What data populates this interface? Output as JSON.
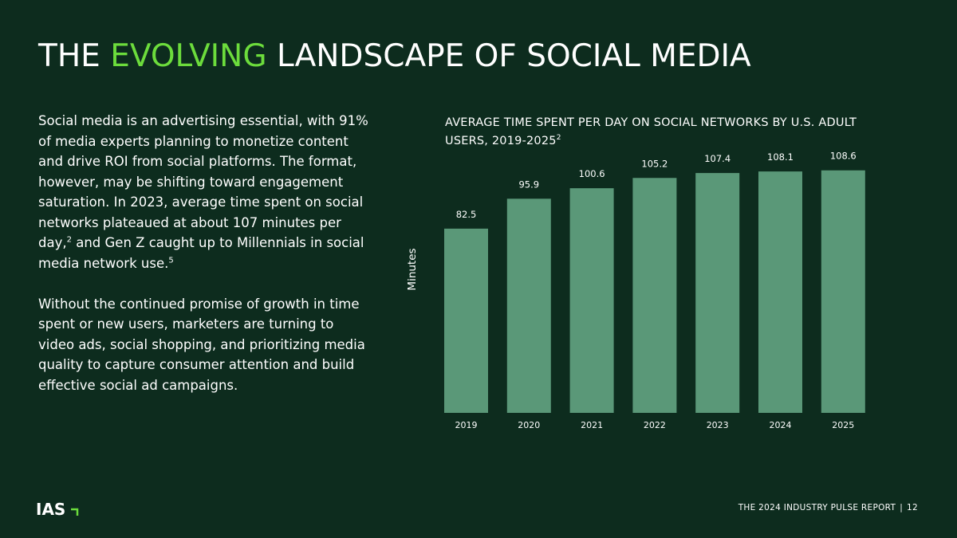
{
  "header": {
    "title_part1": "THE ",
    "title_accent": "EVOLVING",
    "title_part2": " LANDSCAPE OF SOCIAL MEDIA"
  },
  "body": {
    "p1_text": "Social media is an advertising essential, with 91% of media experts planning to monetize content and drive ROI from social platforms. The format, however, may be shifting toward engagement saturation. In 2023, average time spent on social networks plateaued at about 107 minutes per day,",
    "p1_sup1": "2",
    "p1_text2": " and Gen Z caught up to Millennials in social media network use.",
    "p1_sup2": "5",
    "p2_text": "Without the continued promise of growth in time spent or new users, marketers are turning to video ads, social shopping, and prioritizing media quality to capture consumer attention and build effective social ad campaigns."
  },
  "chart_data": {
    "type": "bar",
    "title": "AVERAGE TIME SPENT PER DAY ON SOCIAL NETWORKS BY U.S. ADULT USERS, 2019-2025",
    "title_sup": "2",
    "xlabel": "",
    "ylabel": "Minutes",
    "categories": [
      "2019",
      "2020",
      "2021",
      "2022",
      "2023",
      "2024",
      "2025"
    ],
    "values": [
      82.5,
      95.9,
      100.6,
      105.2,
      107.4,
      108.1,
      108.6
    ],
    "value_labels": [
      "82.5",
      "95.9",
      "100.6",
      "105.2",
      "107.4",
      "108.1",
      "108.6"
    ],
    "ylim": [
      0,
      113.5
    ],
    "grid": false,
    "bar_color": "#5a9878"
  },
  "footer": {
    "logo_text": "IAS",
    "report": "THE 2024 INDUSTRY PULSE REPORT",
    "separator": "|",
    "page": "12"
  },
  "colors": {
    "background": "#0d2c1e",
    "accent": "#6cdc3c",
    "bar": "#5a9878",
    "text": "#ffffff"
  }
}
